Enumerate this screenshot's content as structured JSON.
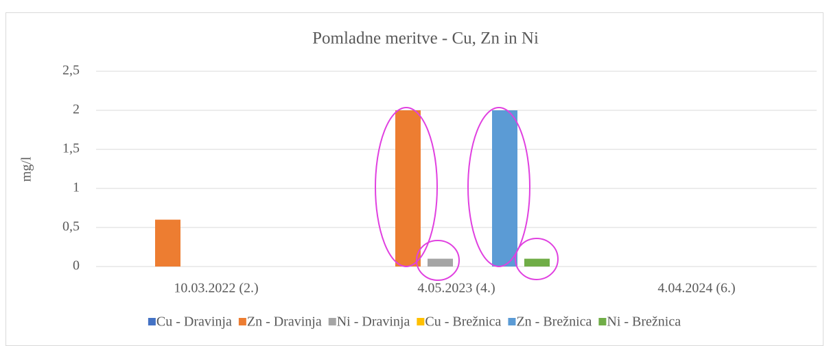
{
  "chart_data": {
    "type": "bar",
    "title": "Pomladne meritve - Cu, Zn in Ni",
    "y_label": "mg/l",
    "categories": [
      "10.03.2022 (2.)",
      "4.05.2023 (4.)",
      "4.04.2024 (6.)"
    ],
    "series": [
      {
        "name": "Cu - Dravinja",
        "color": "#4472c4",
        "values": [
          0,
          0,
          0
        ]
      },
      {
        "name": "Zn - Dravinja",
        "color": "#ed7d31",
        "values": [
          0.6,
          2,
          0
        ]
      },
      {
        "name": "Ni - Dravinja",
        "color": "#a5a5a5",
        "values": [
          0,
          0.1,
          0
        ]
      },
      {
        "name": "Cu - Brežnica",
        "color": "#ffc000",
        "values": [
          0,
          0,
          0
        ]
      },
      {
        "name": "Zn - Brežnica",
        "color": "#5b9bd5",
        "values": [
          0,
          2,
          0
        ]
      },
      {
        "name": "Ni - Brežnica",
        "color": "#70ad47",
        "values": [
          0,
          0.1,
          0
        ]
      }
    ],
    "ylim": [
      0,
      2.5
    ],
    "yticks": [
      0,
      {
        "value": 0.5,
        "label": "0,5"
      },
      1,
      {
        "value": 1.5,
        "label": "1,5"
      },
      2,
      {
        "value": 2.5,
        "label": "2,5"
      }
    ],
    "grid": true,
    "legend": "bottom"
  }
}
